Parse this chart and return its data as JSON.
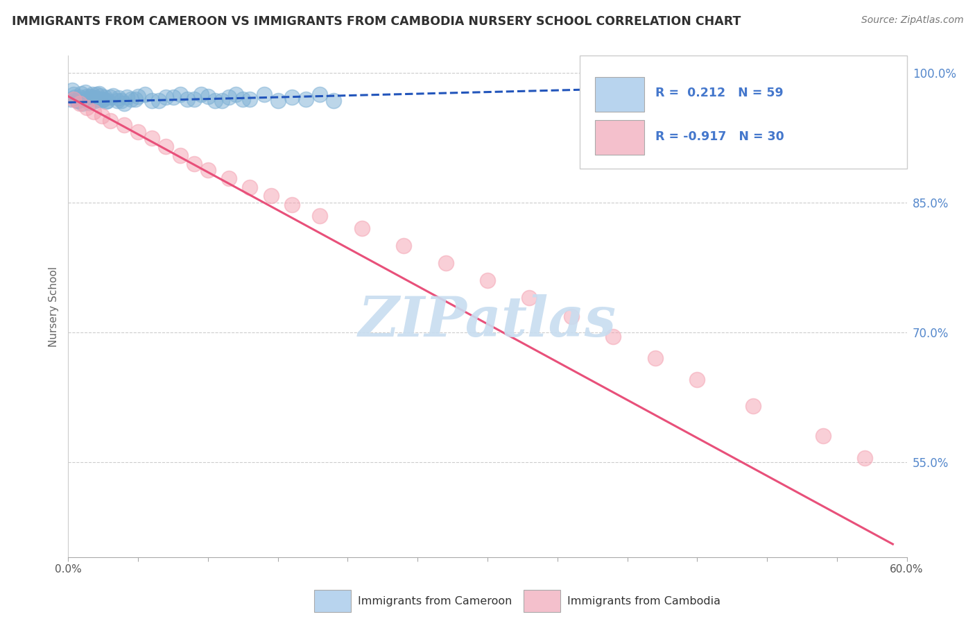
{
  "title": "IMMIGRANTS FROM CAMEROON VS IMMIGRANTS FROM CAMBODIA NURSERY SCHOOL CORRELATION CHART",
  "source": "Source: ZipAtlas.com",
  "ylabel": "Nursery School",
  "watermark": "ZIPatlas",
  "xlim": [
    0.0,
    0.6
  ],
  "ylim": [
    0.44,
    1.02
  ],
  "yticks_right": [
    1.0,
    0.85,
    0.7,
    0.55
  ],
  "ytick_labels_right": [
    "100.0%",
    "85.0%",
    "70.0%",
    "55.0%"
  ],
  "xticks": [
    0.0,
    0.05,
    0.1,
    0.15,
    0.2,
    0.25,
    0.3,
    0.35,
    0.4,
    0.45,
    0.5,
    0.55,
    0.6
  ],
  "xtick_labels_show": [
    "0.0%",
    "",
    "",
    "",
    "",
    "",
    "",
    "",
    "",
    "",
    "",
    "",
    "60.0%"
  ],
  "legend_r1": "R =  0.212",
  "legend_n1": "N = 59",
  "legend_r2": "R = -0.917",
  "legend_n2": "N = 30",
  "legend_label1": "Immigrants from Cameroon",
  "legend_label2": "Immigrants from Cambodia",
  "scatter_blue_x": [
    0.002,
    0.004,
    0.006,
    0.008,
    0.01,
    0.012,
    0.014,
    0.016,
    0.018,
    0.02,
    0.003,
    0.005,
    0.007,
    0.009,
    0.011,
    0.013,
    0.015,
    0.017,
    0.019,
    0.021,
    0.023,
    0.025,
    0.027,
    0.03,
    0.035,
    0.04,
    0.045,
    0.05,
    0.06,
    0.07,
    0.08,
    0.09,
    0.1,
    0.11,
    0.12,
    0.13,
    0.022,
    0.024,
    0.026,
    0.028,
    0.032,
    0.036,
    0.038,
    0.042,
    0.048,
    0.055,
    0.065,
    0.075,
    0.085,
    0.095,
    0.105,
    0.115,
    0.125,
    0.14,
    0.15,
    0.16,
    0.17,
    0.18,
    0.19
  ],
  "scatter_blue_y": [
    0.97,
    0.975,
    0.968,
    0.972,
    0.965,
    0.978,
    0.97,
    0.973,
    0.967,
    0.975,
    0.98,
    0.972,
    0.968,
    0.976,
    0.97,
    0.973,
    0.966,
    0.975,
    0.971,
    0.969,
    0.974,
    0.97,
    0.967,
    0.972,
    0.968,
    0.965,
    0.97,
    0.973,
    0.968,
    0.972,
    0.975,
    0.97,
    0.973,
    0.968,
    0.975,
    0.97,
    0.976,
    0.969,
    0.972,
    0.968,
    0.974,
    0.971,
    0.968,
    0.972,
    0.97,
    0.975,
    0.968,
    0.972,
    0.97,
    0.975,
    0.968,
    0.972,
    0.97,
    0.975,
    0.968,
    0.972,
    0.97,
    0.975,
    0.968
  ],
  "scatter_pink_x": [
    0.004,
    0.008,
    0.013,
    0.018,
    0.024,
    0.03,
    0.04,
    0.05,
    0.06,
    0.07,
    0.08,
    0.09,
    0.1,
    0.115,
    0.13,
    0.145,
    0.16,
    0.18,
    0.21,
    0.24,
    0.27,
    0.3,
    0.33,
    0.36,
    0.39,
    0.42,
    0.45,
    0.49,
    0.54,
    0.57
  ],
  "scatter_pink_y": [
    0.97,
    0.965,
    0.96,
    0.955,
    0.95,
    0.945,
    0.94,
    0.932,
    0.925,
    0.915,
    0.905,
    0.895,
    0.888,
    0.878,
    0.868,
    0.858,
    0.848,
    0.835,
    0.82,
    0.8,
    0.78,
    0.76,
    0.74,
    0.718,
    0.695,
    0.67,
    0.645,
    0.615,
    0.58,
    0.555
  ],
  "blue_line_x": [
    0.0,
    0.6
  ],
  "blue_line_y": [
    0.966,
    0.99
  ],
  "pink_line_x": [
    0.0,
    0.59
  ],
  "pink_line_y": [
    0.973,
    0.455
  ],
  "scatter_blue_color": "#7bafd4",
  "scatter_pink_color": "#f4a0b0",
  "line_blue_color": "#2255bb",
  "line_pink_color": "#e8507a",
  "legend_box_blue": "#b8d4ee",
  "legend_box_pink": "#f4c0cc",
  "grid_color": "#cccccc",
  "title_color": "#303030",
  "right_axis_color": "#5588cc",
  "watermark_color": "#c8ddf0"
}
